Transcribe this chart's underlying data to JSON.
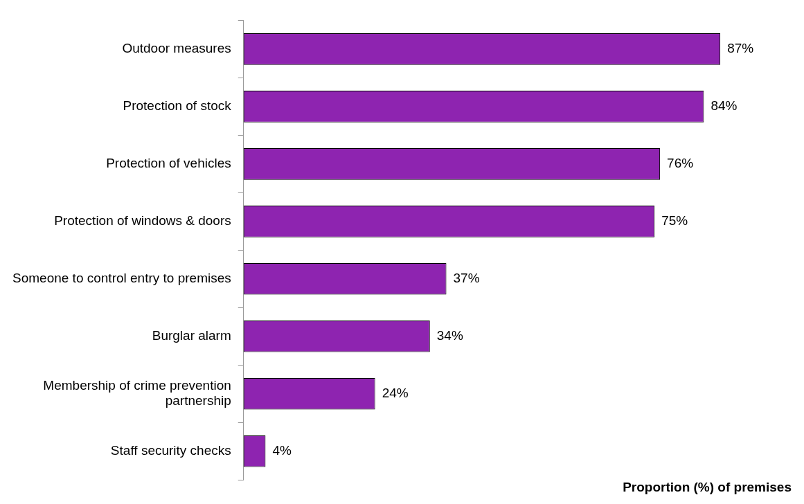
{
  "chart_data": {
    "type": "bar",
    "orientation": "horizontal",
    "tick_labels": "y",
    "xlabel": "Proportion (%) of premises",
    "categories": [
      "Outdoor measures",
      "Protection of stock",
      "Protection of vehicles",
      "Protection of windows & doors",
      "Someone to control entry to premises",
      "Burglar alarm",
      "Membership of crime prevention partnership",
      "Staff security checks"
    ],
    "values": [
      87,
      84,
      76,
      75,
      37,
      34,
      24,
      4
    ],
    "value_labels": [
      "87%",
      "84%",
      "76%",
      "75%",
      "37%",
      "34%",
      "24%",
      "4%"
    ],
    "color": "#8e24b0",
    "grid": false,
    "legend": false
  }
}
